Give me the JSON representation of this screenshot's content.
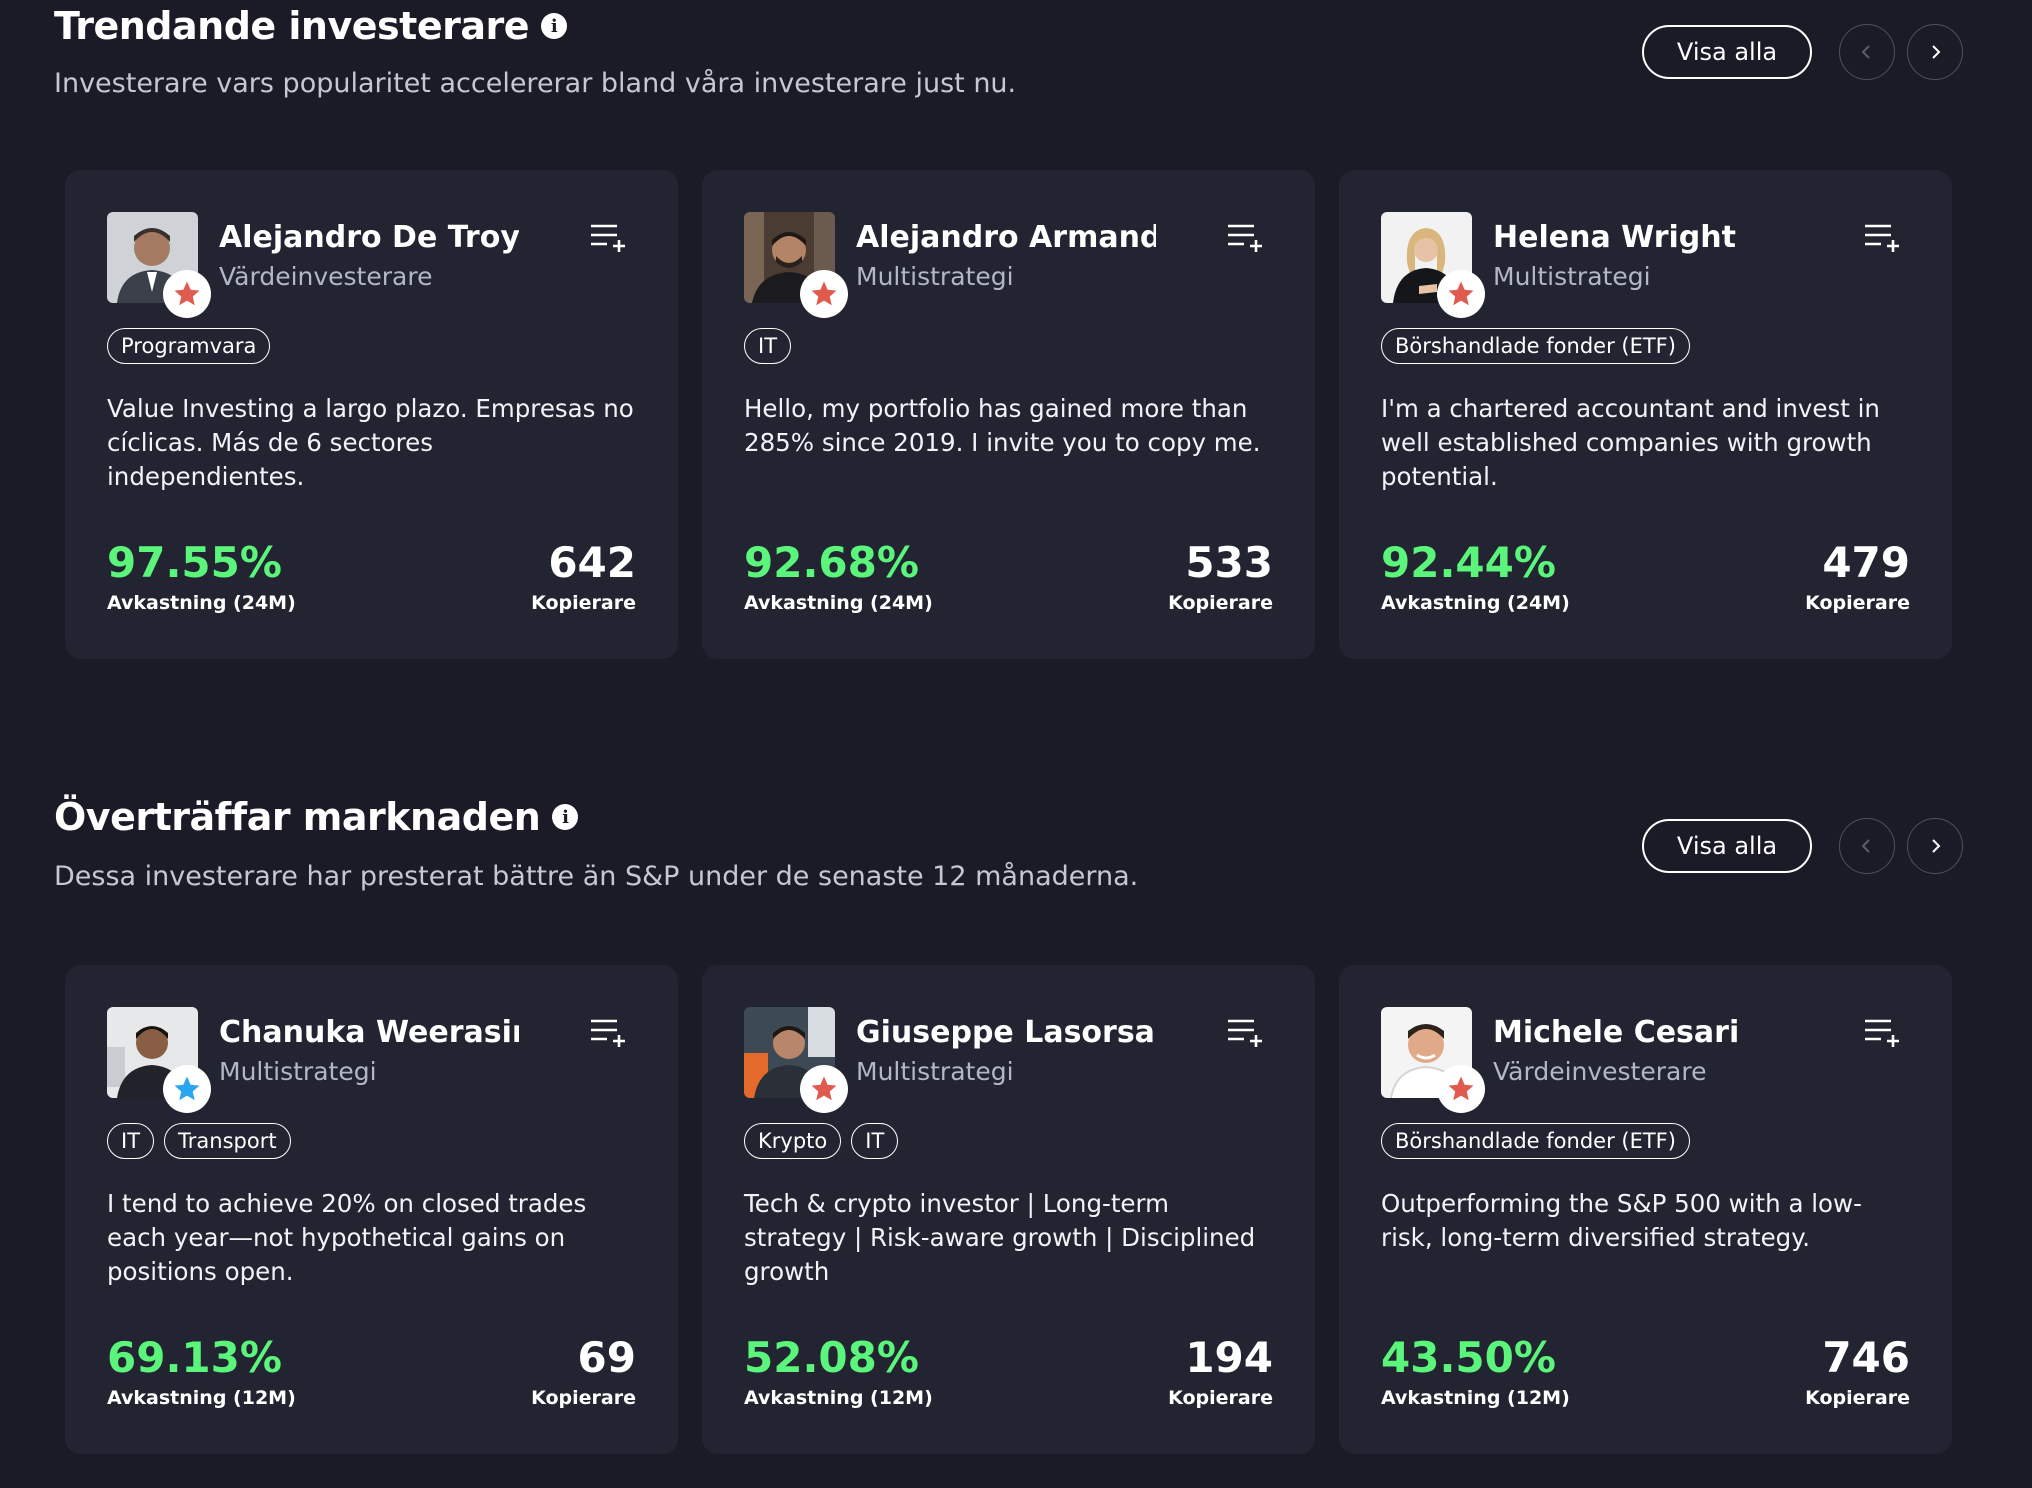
{
  "colors": {
    "background": "#1a1b27",
    "card": "#222531",
    "gain_green": "#5cf57c",
    "star_red": "#e05a4f",
    "star_blue": "#2aa6f0"
  },
  "sections": [
    {
      "title": "Trendande investerare",
      "subtitle": "Investerare vars popularitet accelererar bland våra investerare just nu.",
      "view_all_label": "Visa alla",
      "cards": [
        {
          "name": "Alejandro De Troya...",
          "strategy": "Värdeinvesterare",
          "tags": [
            "Programvara"
          ],
          "bio": "Value Investing a largo plazo. Empresas no cíclicas. Más de 6 sectores independientes.",
          "gain": "97.55%",
          "gain_label": "Avkastning (24M)",
          "copiers": "642",
          "copiers_label": "Kopierare",
          "badge": "red-star-icon"
        },
        {
          "name": "Alejandro Armand ...",
          "strategy": "Multistrategi",
          "tags": [
            "IT"
          ],
          "bio": "Hello, my portfolio has gained more than 285% since 2019. I invite you to copy me.",
          "gain": "92.68%",
          "gain_label": "Avkastning (24M)",
          "copiers": "533",
          "copiers_label": "Kopierare",
          "badge": "red-star-icon"
        },
        {
          "name": "Helena Wright",
          "strategy": "Multistrategi",
          "tags": [
            "Börshandlade fonder (ETF)"
          ],
          "bio": "I'm a chartered accountant and invest in well established companies with growth potential.",
          "gain": "92.44%",
          "gain_label": "Avkastning (24M)",
          "copiers": "479",
          "copiers_label": "Kopierare",
          "badge": "red-star-icon"
        }
      ]
    },
    {
      "title": "Överträffar marknaden",
      "subtitle": "Dessa investerare har presterat bättre än S&P under de senaste 12 månaderna.",
      "view_all_label": "Visa alla",
      "cards": [
        {
          "name": "Chanuka Weerasin...",
          "strategy": "Multistrategi",
          "tags": [
            "IT",
            "Transport"
          ],
          "bio": "I tend to achieve 20% on closed trades each year—not hypothetical gains on positions open.",
          "gain": "69.13%",
          "gain_label": "Avkastning (12M)",
          "copiers": "69",
          "copiers_label": "Kopierare",
          "badge": "blue-star-icon"
        },
        {
          "name": "Giuseppe Lasorsa",
          "strategy": "Multistrategi",
          "tags": [
            "Krypto",
            "IT"
          ],
          "bio": "Tech & crypto investor | Long-term strategy | Risk-aware growth | Disciplined growth",
          "gain": "52.08%",
          "gain_label": "Avkastning (12M)",
          "copiers": "194",
          "copiers_label": "Kopierare",
          "badge": "red-star-icon"
        },
        {
          "name": "Michele Cesari",
          "strategy": "Värdeinvesterare",
          "tags": [
            "Börshandlade fonder (ETF)"
          ],
          "bio": "Outperforming the S&P 500 with a low-risk, long-term diversified strategy.",
          "gain": "43.50%",
          "gain_label": "Avkastning (12M)",
          "copiers": "746",
          "copiers_label": "Kopierare",
          "badge": "red-star-icon"
        }
      ]
    }
  ]
}
